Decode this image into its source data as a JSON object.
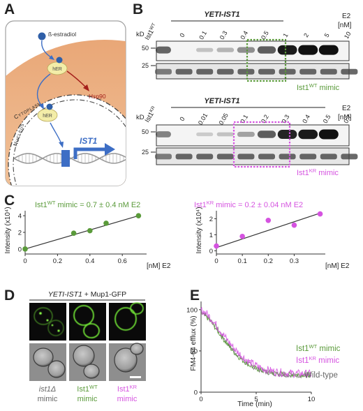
{
  "panels": {
    "A": "A",
    "B": "B",
    "C": "C",
    "D": "D",
    "E": "E"
  },
  "colors": {
    "wt": "#5a9a3a",
    "kr": "#d553e0",
    "grey": "#555555",
    "cell_orange": "#f4c79a",
    "arrow_blue": "#3d6ec5",
    "hsp_red": "#a5201b"
  },
  "panel_a": {
    "estradiol": "ß-estradiol",
    "her1": "hER",
    "her2": "hER",
    "hsp90": "Hsp90",
    "cytoplasm": "Cytoplasm",
    "nucleus": "Nucleus",
    "gene": "IST1"
  },
  "panel_b": {
    "top": {
      "construct": "YETI-IST1",
      "ctrl_label": "Ist1",
      "ctrl_sup": "WT",
      "e2": "E2",
      "unit": "[nM]",
      "kd": "kD",
      "lanes": [
        "0",
        "0.1",
        "0.3",
        "0.4",
        "0.5",
        "1",
        "2",
        "5",
        "10"
      ],
      "mw": [
        "50",
        "25"
      ],
      "mimic": "Ist1",
      "mimic_sup": "WT",
      "mimic_suffix": " mimic",
      "band_intensity": [
        0.75,
        0.0,
        0.08,
        0.15,
        0.35,
        0.6,
        0.95,
        1.0,
        1.0
      ]
    },
    "bottom": {
      "construct": "YETI-IST1",
      "ctrl_label": "Ist1",
      "ctrl_sup": "KR",
      "e2": "E2",
      "unit": "[nM]",
      "kd": "kD",
      "lanes": [
        "0",
        "0.01",
        "0.05",
        "0.1",
        "0.2",
        "0.3",
        "0.4",
        "0.5",
        "0.7"
      ],
      "mw": [
        "50",
        "25"
      ],
      "mimic": "Ist1",
      "mimic_sup": "KR",
      "mimic_suffix": " mimic",
      "band_intensity": [
        0.55,
        0.0,
        0.03,
        0.08,
        0.25,
        0.6,
        0.9,
        0.95,
        1.0
      ]
    }
  },
  "panel_c": {
    "left": {
      "ttl_a": "Ist1",
      "ttl_sup": "WT",
      "ttl_b": " mimic = 0.7 ± 0.4 nM E2",
      "ylabel": "Intensity (x10⁴)",
      "xlabel": "[nM] E2",
      "xticks": [
        "0",
        "0.2",
        "0.4",
        "0.6"
      ],
      "yticks": [
        "0",
        "2",
        "4"
      ],
      "chart_data": {
        "type": "scatter",
        "x": [
          0,
          0.3,
          0.4,
          0.5,
          0.7
        ],
        "y": [
          0.0,
          1.9,
          2.2,
          3.1,
          4.0
        ],
        "xlim": [
          0,
          0.75
        ],
        "ylim": [
          -0.6,
          4.6
        ],
        "fit": [
          [
            0,
            0.0
          ],
          [
            0.7,
            4.0
          ]
        ]
      }
    },
    "right": {
      "ttl_a": "Ist1",
      "ttl_sup": "KR",
      "ttl_b": " mimic = 0.2 ± 0.04 nM E2",
      "ylabel": "Intensity (x10⁴)",
      "xlabel": "[nM] E2",
      "xticks": [
        "0",
        "0.1",
        "0.2",
        "0.3"
      ],
      "yticks": [
        "0",
        "1",
        "2"
      ],
      "chart_data": {
        "type": "scatter",
        "x": [
          0,
          0.1,
          0.2,
          0.3,
          0.4
        ],
        "y": [
          0.3,
          0.9,
          1.9,
          1.6,
          2.3
        ],
        "xlim": [
          0,
          0.42
        ],
        "ylim": [
          -0.2,
          2.5
        ],
        "fit": [
          [
            0,
            0.2
          ],
          [
            0.4,
            2.35
          ]
        ]
      }
    }
  },
  "panel_d": {
    "header_italic": "YETI-IST1",
    "header_rest": " + Mup1-GFP",
    "col1_a": "ist1Δ",
    "col1_b": "mimic",
    "col2_a": "Ist1",
    "col2_sup": "WT",
    "col2_b": "mimic",
    "col3_a": "Ist1",
    "col3_sup": "KR",
    "col3_b": "mimic"
  },
  "panel_e": {
    "ylabel": "FM4-64 efflux (%)",
    "xlabel": "Time (min)",
    "xticks": [
      "0",
      "5",
      "10"
    ],
    "yticks": [
      "0",
      "50",
      "100"
    ],
    "legend_wt_a": "Ist1",
    "legend_wt_sup": "WT",
    "legend_wt_b": " mimic",
    "legend_kr_a": "Ist1",
    "legend_kr_sup": "KR",
    "legend_kr_b": " mimic",
    "legend_wild": "Wild-type",
    "chart_data": {
      "type": "line",
      "xlim": [
        0,
        10
      ],
      "ylim": [
        0,
        110
      ],
      "series": [
        {
          "name": "Wild-type",
          "color": "#777777",
          "start": 97,
          "end": 20,
          "tau": 3.1
        },
        {
          "name": "Ist1WT mimic",
          "color": "#5a9a3a",
          "start": 95,
          "end": 21,
          "tau": 3.0
        },
        {
          "name": "Ist1KR mimic",
          "color": "#d553e0",
          "start": 99,
          "end": 22,
          "tau": 3.2
        }
      ]
    }
  }
}
